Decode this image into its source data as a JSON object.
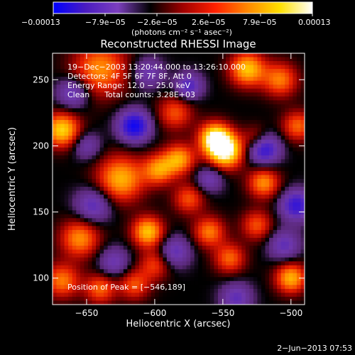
{
  "chart_data": {
    "type": "heatmap",
    "title": "Reconstructed RHESSI Image",
    "xlabel": "Heliocentric X (arcsec)",
    "ylabel": "Heliocentric Y (arcsec)",
    "xlim": [
      -675,
      -490
    ],
    "ylim": [
      80,
      270
    ],
    "x_ticks": [
      -650,
      -600,
      -550,
      -500
    ],
    "x_tick_labels": [
      "−650",
      "−600",
      "−550",
      "−500"
    ],
    "y_ticks": [
      100,
      150,
      200,
      250
    ],
    "y_tick_labels": [
      "100",
      "150",
      "200",
      "250"
    ],
    "colorbar": {
      "range": [
        -0.00013,
        0.00013
      ],
      "tick_labels": [
        "−0.00013",
        "−7.9e−05",
        "−2.6e−05",
        "2.6e−05",
        "7.9e−05",
        "0.00013"
      ],
      "unit_label": "(photons cm⁻² s⁻¹ asec⁻²)",
      "colors": [
        "#0000ff",
        "#4a1cc0",
        "#7c3fbe",
        "#000000",
        "#a00000",
        "#ff2000",
        "#ff8800",
        "#ffe000",
        "#ffffff"
      ]
    },
    "annotations": [
      "19−Dec−2003 13:20:44.000 to 13:26:10.000",
      "Detectors: 4F 5F 6F 7F 8F, Att 0",
      "Energy Range: 12.0 − 25.0 keV",
      "Clean      Total counts: 3.28E+03"
    ],
    "peak_label": "Position of Peak = [−546,189]",
    "peak": [
      -546,
      189
    ],
    "blobs": [
      {
        "x": -548,
        "y": 196,
        "v": 1.0,
        "s": 9
      },
      {
        "x": -556,
        "y": 206,
        "v": 0.9,
        "s": 8
      },
      {
        "x": -625,
        "y": 175,
        "v": 0.7,
        "s": 12
      },
      {
        "x": -582,
        "y": 190,
        "v": 0.65,
        "s": 8
      },
      {
        "x": -605,
        "y": 135,
        "v": 0.75,
        "s": 8
      },
      {
        "x": -597,
        "y": 182,
        "v": 0.6,
        "s": 8
      },
      {
        "x": -668,
        "y": 212,
        "v": 0.8,
        "s": 9
      },
      {
        "x": -640,
        "y": 258,
        "v": 0.6,
        "s": 14
      },
      {
        "x": -532,
        "y": 258,
        "v": 0.75,
        "s": 9
      },
      {
        "x": -508,
        "y": 250,
        "v": 0.55,
        "s": 9
      },
      {
        "x": -495,
        "y": 215,
        "v": 0.5,
        "s": 8
      },
      {
        "x": -520,
        "y": 172,
        "v": 0.6,
        "s": 8
      },
      {
        "x": -655,
        "y": 130,
        "v": 0.6,
        "s": 10
      },
      {
        "x": -668,
        "y": 98,
        "v": 0.55,
        "s": 9
      },
      {
        "x": -640,
        "y": 92,
        "v": 0.5,
        "s": 8
      },
      {
        "x": -560,
        "y": 135,
        "v": 0.55,
        "s": 8
      },
      {
        "x": -545,
        "y": 115,
        "v": 0.5,
        "s": 8
      },
      {
        "x": -575,
        "y": 160,
        "v": 0.45,
        "s": 8
      },
      {
        "x": -525,
        "y": 140,
        "v": 0.45,
        "s": 8
      },
      {
        "x": -500,
        "y": 100,
        "v": 0.7,
        "s": 8
      },
      {
        "x": -615,
        "y": 95,
        "v": 0.45,
        "s": 8
      },
      {
        "x": -585,
        "y": 225,
        "v": 0.45,
        "s": 9
      },
      {
        "x": -600,
        "y": 110,
        "v": 0.4,
        "s": 8
      },
      {
        "x": -525,
        "y": 205,
        "v": 0.4,
        "s": 7
      },
      {
        "x": -615,
        "y": 215,
        "v": -0.9,
        "s": 8
      },
      {
        "x": -520,
        "y": 198,
        "v": -0.8,
        "s": 8
      },
      {
        "x": -496,
        "y": 155,
        "v": -0.7,
        "s": 8
      },
      {
        "x": -575,
        "y": 245,
        "v": -0.55,
        "s": 7
      },
      {
        "x": -660,
        "y": 240,
        "v": -0.5,
        "s": 8
      },
      {
        "x": -585,
        "y": 120,
        "v": -0.45,
        "s": 8
      },
      {
        "x": -645,
        "y": 155,
        "v": -0.5,
        "s": 9
      },
      {
        "x": -540,
        "y": 85,
        "v": -0.45,
        "s": 8
      },
      {
        "x": -630,
        "y": 112,
        "v": -0.4,
        "s": 8
      },
      {
        "x": -605,
        "y": 255,
        "v": -0.4,
        "s": 8
      },
      {
        "x": -560,
        "y": 175,
        "v": -0.4,
        "s": 7
      },
      {
        "x": -505,
        "y": 125,
        "v": -0.45,
        "s": 8
      },
      {
        "x": -650,
        "y": 200,
        "v": -0.35,
        "s": 7
      }
    ]
  },
  "footer": {
    "timestamp": "2−Jun−2013 07:53"
  }
}
